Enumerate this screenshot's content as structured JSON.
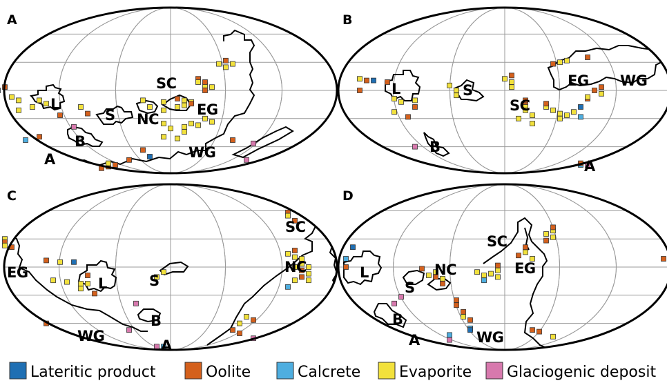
{
  "colors": {
    "lateritic": "#1f6fb3",
    "oolite": "#d4601c",
    "calcrete": "#4eaee0",
    "evaporite": "#f2e13c",
    "glaciogenic": "#d779ad"
  },
  "panels": [
    {
      "letter": "A",
      "labels": [
        "L",
        "B",
        "A",
        "S",
        "NC",
        "SC",
        "EG",
        "WG"
      ],
      "markers": [
        [
          "oolite",
          -24,
          0.52
        ],
        [
          "lateritic",
          -25,
          0.5
        ],
        [
          "evaporite",
          -23,
          0.46
        ],
        [
          "evaporite",
          -22,
          0.44
        ],
        [
          "evaporite",
          -19,
          0.44
        ],
        [
          "evaporite",
          -18,
          0.42
        ],
        [
          "evaporite",
          -20,
          0.4
        ],
        [
          "evaporite",
          -22,
          0.38
        ],
        [
          "oolite",
          -16,
          0.35
        ],
        [
          "oolite",
          -12,
          0.36
        ],
        [
          "evaporite",
          -13,
          0.4
        ],
        [
          "glaciogenic",
          -14,
          0.28
        ],
        [
          "oolite",
          -19,
          0.22
        ],
        [
          "calcrete",
          -21,
          0.2
        ],
        [
          "oolite",
          -9,
          0.04
        ],
        [
          "oolite",
          -10,
          0.03
        ],
        [
          "oolite",
          -8,
          0.05
        ],
        [
          "evaporite",
          -9,
          0.06
        ],
        [
          "oolite",
          -6,
          0.08
        ],
        [
          "oolite",
          -4,
          0.14
        ],
        [
          "lateritic",
          -3,
          0.1
        ],
        [
          "evaporite",
          -4,
          0.44
        ],
        [
          "evaporite",
          -1,
          0.43
        ],
        [
          "evaporite",
          -3,
          0.4
        ],
        [
          "evaporite",
          -1,
          0.38
        ],
        [
          "oolite",
          1,
          0.45
        ],
        [
          "evaporite",
          2,
          0.44
        ],
        [
          "evaporite",
          3,
          0.43
        ],
        [
          "evaporite",
          2,
          0.41
        ],
        [
          "oolite",
          3,
          0.42
        ],
        [
          "evaporite",
          1,
          0.4
        ],
        [
          "oolite",
          4,
          0.57
        ],
        [
          "evaporite",
          4,
          0.55
        ],
        [
          "evaporite",
          5,
          0.53
        ],
        [
          "oolite",
          5,
          0.55
        ],
        [
          "evaporite",
          6,
          0.52
        ],
        [
          "oolite",
          5,
          0.5
        ],
        [
          "evaporite",
          7,
          0.66
        ],
        [
          "oolite",
          8,
          0.68
        ],
        [
          "evaporite",
          8,
          0.64
        ],
        [
          "evaporite",
          9,
          0.66
        ],
        [
          "evaporite",
          -1,
          0.3
        ],
        [
          "evaporite",
          0,
          0.27
        ],
        [
          "evaporite",
          2,
          0.28
        ],
        [
          "evaporite",
          3,
          0.3
        ],
        [
          "evaporite",
          4,
          0.29
        ],
        [
          "evaporite",
          2,
          0.25
        ],
        [
          "evaporite",
          5,
          0.33
        ],
        [
          "evaporite",
          6,
          0.31
        ],
        [
          "evaporite",
          -1,
          0.22
        ],
        [
          "evaporite",
          1,
          0.21
        ],
        [
          "oolite",
          9,
          0.2
        ],
        [
          "glaciogenic",
          12,
          0.18
        ],
        [
          "glaciogenic",
          11,
          0.08
        ]
      ]
    },
    {
      "letter": "B",
      "labels": [
        "L",
        "S",
        "SC",
        "EG",
        "WG",
        "B",
        "A"
      ],
      "markers": [
        [
          "evaporite",
          -21,
          0.57
        ],
        [
          "oolite",
          -20,
          0.56
        ],
        [
          "lateritic",
          -19,
          0.56
        ],
        [
          "oolite",
          -17,
          0.55
        ],
        [
          "oolite",
          -21,
          0.5
        ],
        [
          "evaporite",
          -16,
          0.45
        ],
        [
          "evaporite",
          -15,
          0.43
        ],
        [
          "evaporite",
          -13,
          0.44
        ],
        [
          "oolite",
          -13,
          0.4
        ],
        [
          "evaporite",
          -16,
          0.37
        ],
        [
          "oolite",
          -14,
          0.34
        ],
        [
          "evaporite",
          -8,
          0.53
        ],
        [
          "evaporite",
          -7,
          0.5
        ],
        [
          "evaporite",
          -7,
          0.47
        ],
        [
          "glaciogenic",
          -13,
          0.16
        ],
        [
          "glaciogenic",
          12,
          0.05
        ],
        [
          "calcrete",
          11,
          0.05
        ],
        [
          "oolite",
          11,
          0.06
        ],
        [
          "evaporite",
          0,
          0.57
        ],
        [
          "oolite",
          1,
          0.59
        ],
        [
          "evaporite",
          1,
          0.55
        ],
        [
          "evaporite",
          1,
          0.52
        ],
        [
          "oolite",
          3,
          0.42
        ],
        [
          "evaporite",
          3,
          0.4
        ],
        [
          "evaporite",
          3,
          0.38
        ],
        [
          "evaporite",
          4,
          0.35
        ],
        [
          "evaporite",
          2,
          0.33
        ],
        [
          "evaporite",
          4,
          0.3
        ],
        [
          "oolite",
          3,
          0.44
        ],
        [
          "oolite",
          7,
          0.66
        ],
        [
          "evaporite",
          8,
          0.67
        ],
        [
          "evaporite",
          9,
          0.68
        ],
        [
          "oolite",
          12,
          0.7
        ],
        [
          "evaporite",
          6,
          0.4
        ],
        [
          "oolite",
          6,
          0.42
        ],
        [
          "evaporite",
          7,
          0.38
        ],
        [
          "evaporite",
          8,
          0.36
        ],
        [
          "evaporite",
          9,
          0.35
        ],
        [
          "evaporite",
          8,
          0.33
        ],
        [
          "evaporite",
          10,
          0.37
        ],
        [
          "calcrete",
          11,
          0.34
        ],
        [
          "lateritic",
          11,
          0.4
        ],
        [
          "oolite",
          12,
          0.45
        ],
        [
          "evaporite",
          12,
          0.46
        ],
        [
          "oolite",
          13,
          0.5
        ],
        [
          "oolite",
          14,
          0.52
        ],
        [
          "evaporite",
          14,
          0.48
        ]
      ]
    },
    {
      "letter": "C",
      "labels": [
        "EG",
        "L",
        "S",
        "B",
        "WG",
        "A",
        "SC",
        "NC"
      ],
      "markers": [
        [
          "evaporite",
          -24,
          0.67
        ],
        [
          "oolite",
          -24,
          0.65
        ],
        [
          "evaporite",
          -24,
          0.63
        ],
        [
          "oolite",
          -23,
          0.62
        ],
        [
          "oolite",
          -18,
          0.54
        ],
        [
          "evaporite",
          -16,
          0.53
        ],
        [
          "lateritic",
          -14,
          0.53
        ],
        [
          "evaporite",
          -17,
          0.42
        ],
        [
          "evaporite",
          -15,
          0.41
        ],
        [
          "evaporite",
          -13,
          0.4
        ],
        [
          "oolite",
          -12,
          0.45
        ],
        [
          "evaporite",
          -12,
          0.4
        ],
        [
          "evaporite",
          -13,
          0.37
        ],
        [
          "oolite",
          -11,
          0.34
        ],
        [
          "evaporite",
          -1,
          0.47
        ],
        [
          "evaporite",
          -2,
          0.44
        ],
        [
          "glaciogenic",
          -5,
          0.28
        ],
        [
          "glaciogenic",
          -6,
          0.12
        ],
        [
          "oolite",
          -18,
          0.16
        ],
        [
          "calcrete",
          -1,
          0.02
        ],
        [
          "glaciogenic",
          -2,
          0.02
        ],
        [
          "oolite",
          12,
          0.18
        ],
        [
          "evaporite",
          11,
          0.2
        ],
        [
          "evaporite",
          10,
          0.16
        ],
        [
          "oolite",
          9,
          0.12
        ],
        [
          "oolite",
          10,
          0.1
        ],
        [
          "glaciogenic",
          12,
          0.07
        ],
        [
          "evaporite",
          17,
          0.58
        ],
        [
          "oolite",
          18,
          0.6
        ],
        [
          "evaporite",
          18,
          0.56
        ],
        [
          "evaporite",
          19,
          0.55
        ],
        [
          "evaporite",
          19,
          0.52
        ],
        [
          "evaporite",
          18,
          0.5
        ],
        [
          "oolite",
          19,
          0.48
        ],
        [
          "evaporite",
          20,
          0.5
        ],
        [
          "evaporite",
          20,
          0.46
        ],
        [
          "oolite",
          19,
          0.44
        ],
        [
          "evaporite",
          18,
          0.42
        ],
        [
          "calcrete",
          17,
          0.38
        ],
        [
          "evaporite",
          20,
          0.42
        ],
        [
          "oolite",
          17,
          0.83
        ],
        [
          "evaporite",
          17,
          0.81
        ],
        [
          "oolite",
          18,
          0.78
        ]
      ]
    },
    {
      "letter": "D",
      "labels": [
        "L",
        "S",
        "NC",
        "SC",
        "EG",
        "B",
        "A",
        "WG"
      ],
      "markers": [
        [
          "lateritic",
          -22,
          0.62
        ],
        [
          "calcrete",
          -23,
          0.55
        ],
        [
          "oolite",
          -23,
          0.5
        ],
        [
          "oolite",
          -10,
          0.44
        ],
        [
          "evaporite",
          -10,
          0.47
        ],
        [
          "oolite",
          -12,
          0.49
        ],
        [
          "evaporite",
          -11,
          0.45
        ],
        [
          "evaporite",
          -9,
          0.43
        ],
        [
          "oolite",
          -9,
          0.4
        ],
        [
          "oolite",
          -7,
          0.3
        ],
        [
          "oolite",
          -7,
          0.27
        ],
        [
          "oolite",
          -6,
          0.23
        ],
        [
          "evaporite",
          -6,
          0.2
        ],
        [
          "oolite",
          -5,
          0.18
        ],
        [
          "calcrete",
          -5,
          0.13
        ],
        [
          "lateritic",
          -5,
          0.12
        ],
        [
          "glaciogenic",
          -15,
          0.32
        ],
        [
          "glaciogenic",
          -16,
          0.28
        ],
        [
          "glaciogenic",
          -8,
          0.06
        ],
        [
          "calcrete",
          -8,
          0.09
        ],
        [
          "evaporite",
          -4,
          0.47
        ],
        [
          "evaporite",
          -3,
          0.45
        ],
        [
          "evaporite",
          -2,
          0.46
        ],
        [
          "evaporite",
          -1,
          0.44
        ],
        [
          "evaporite",
          -1,
          0.48
        ],
        [
          "calcrete",
          -3,
          0.42
        ],
        [
          "oolite",
          -1,
          0.51
        ],
        [
          "oolite",
          2,
          0.57
        ],
        [
          "evaporite",
          3,
          0.59
        ],
        [
          "oolite",
          3,
          0.62
        ],
        [
          "evaporite",
          4,
          0.55
        ],
        [
          "evaporite",
          6,
          0.7
        ],
        [
          "evaporite",
          7,
          0.72
        ],
        [
          "oolite",
          7,
          0.74
        ],
        [
          "evaporite",
          7,
          0.68
        ],
        [
          "oolite",
          6,
          0.66
        ],
        [
          "oolite",
          4,
          0.12
        ],
        [
          "oolite",
          5,
          0.11
        ],
        [
          "evaporite",
          7,
          0.08
        ],
        [
          "oolite",
          23,
          0.55
        ]
      ]
    }
  ],
  "legend": [
    {
      "key": "lateritic",
      "label": "Lateritic product"
    },
    {
      "key": "oolite",
      "label": "Oolite"
    },
    {
      "key": "calcrete",
      "label": "Calcrete"
    },
    {
      "key": "evaporite",
      "label": "Evaporite"
    },
    {
      "key": "glaciogenic",
      "label": "Glaciogenic deposit"
    }
  ]
}
